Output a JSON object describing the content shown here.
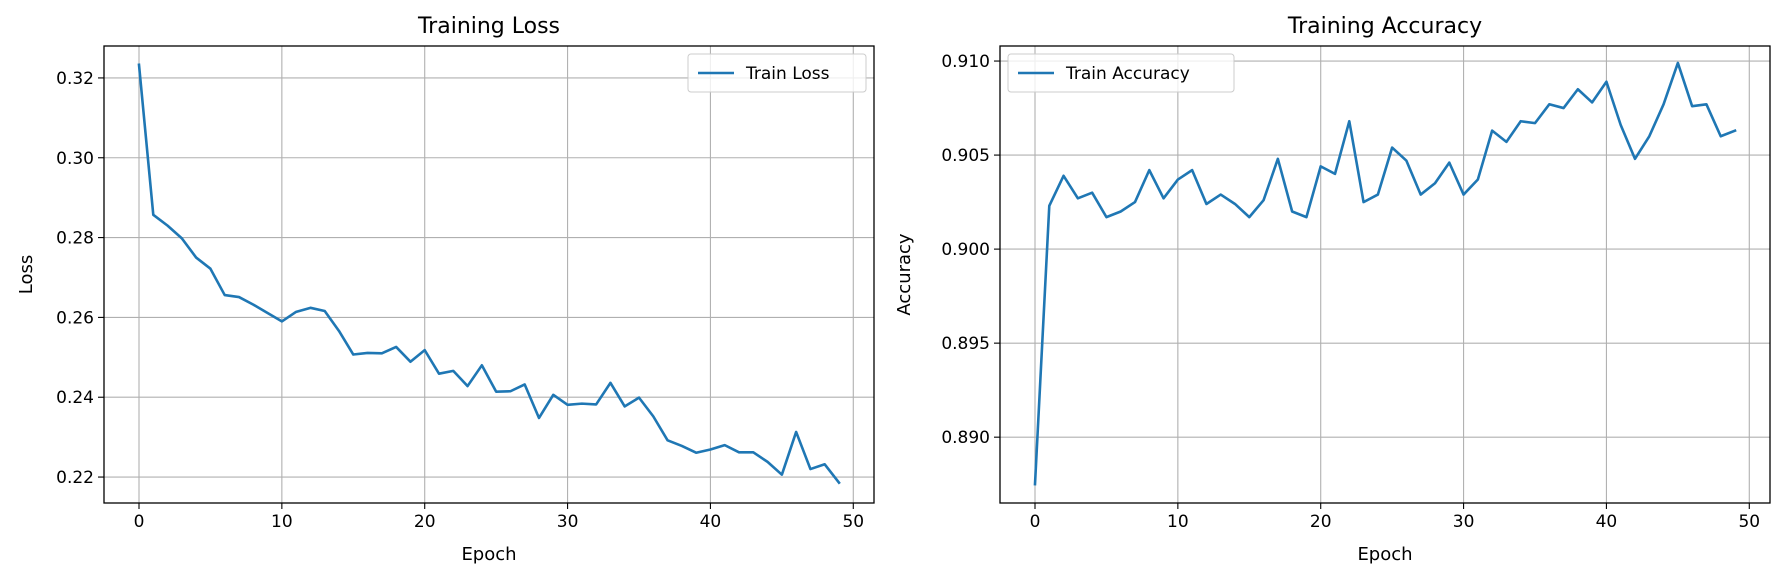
{
  "chart_data": [
    {
      "type": "line",
      "title": "Training Loss",
      "xlabel": "Epoch",
      "ylabel": "Loss",
      "xlim": [
        -2.45,
        51.45
      ],
      "ylim": [
        0.2135,
        0.328
      ],
      "xticks": [
        0,
        10,
        20,
        30,
        40,
        50
      ],
      "yticks": [
        0.22,
        0.24,
        0.26,
        0.28,
        0.3,
        0.32
      ],
      "ytick_labels": [
        "0.22",
        "0.24",
        "0.26",
        "0.28",
        "0.30",
        "0.32"
      ],
      "grid": true,
      "legend_position": "top-right",
      "series": [
        {
          "name": "Train Loss",
          "color": "#1f77b4",
          "x": [
            0,
            1,
            2,
            3,
            4,
            5,
            6,
            7,
            8,
            9,
            10,
            11,
            12,
            13,
            14,
            15,
            16,
            17,
            18,
            19,
            20,
            21,
            22,
            23,
            24,
            25,
            26,
            27,
            28,
            29,
            30,
            31,
            32,
            33,
            34,
            35,
            36,
            37,
            38,
            39,
            40,
            41,
            42,
            43,
            44,
            45,
            46,
            47,
            48,
            49
          ],
          "values": [
            0.3233,
            0.2857,
            0.283,
            0.2798,
            0.275,
            0.2722,
            0.2656,
            0.2651,
            0.2632,
            0.2611,
            0.259,
            0.2614,
            0.2624,
            0.2616,
            0.2566,
            0.2507,
            0.2511,
            0.251,
            0.2526,
            0.2489,
            0.2518,
            0.2459,
            0.2466,
            0.2428,
            0.248,
            0.2414,
            0.2415,
            0.2432,
            0.2348,
            0.2406,
            0.2381,
            0.2384,
            0.2382,
            0.2436,
            0.2377,
            0.2399,
            0.2352,
            0.2292,
            0.2278,
            0.2261,
            0.2269,
            0.228,
            0.2262,
            0.2262,
            0.2238,
            0.2206,
            0.2313,
            0.222,
            0.2232,
            0.2186
          ]
        }
      ]
    },
    {
      "type": "line",
      "title": "Training Accuracy",
      "xlabel": "Epoch",
      "ylabel": "Accuracy",
      "xlim": [
        -2.45,
        51.45
      ],
      "ylim": [
        0.8865,
        0.9108
      ],
      "xticks": [
        0,
        10,
        20,
        30,
        40,
        50
      ],
      "yticks": [
        0.89,
        0.895,
        0.9,
        0.905,
        0.91
      ],
      "ytick_labels": [
        "0.890",
        "0.895",
        "0.900",
        "0.905",
        "0.910"
      ],
      "grid": true,
      "legend_position": "top-left",
      "series": [
        {
          "name": "Train Accuracy",
          "color": "#1f77b4",
          "x": [
            0,
            1,
            2,
            3,
            4,
            5,
            6,
            7,
            8,
            9,
            10,
            11,
            12,
            13,
            14,
            15,
            16,
            17,
            18,
            19,
            20,
            21,
            22,
            23,
            24,
            25,
            26,
            27,
            28,
            29,
            30,
            31,
            32,
            33,
            34,
            35,
            36,
            37,
            38,
            39,
            40,
            41,
            42,
            43,
            44,
            45,
            46,
            47,
            48,
            49
          ],
          "values": [
            0.8875,
            0.9023,
            0.9039,
            0.9027,
            0.903,
            0.9017,
            0.902,
            0.9025,
            0.9042,
            0.9027,
            0.9037,
            0.9042,
            0.9024,
            0.9029,
            0.9024,
            0.9017,
            0.9026,
            0.9048,
            0.902,
            0.9017,
            0.9044,
            0.904,
            0.9068,
            0.9025,
            0.9029,
            0.9054,
            0.9047,
            0.9029,
            0.9035,
            0.9046,
            0.9029,
            0.9037,
            0.9063,
            0.9057,
            0.9068,
            0.9067,
            0.9077,
            0.9075,
            0.9085,
            0.9078,
            0.9089,
            0.9066,
            0.9048,
            0.906,
            0.9077,
            0.9099,
            0.9076,
            0.9077,
            0.906,
            0.9063
          ]
        }
      ]
    }
  ]
}
